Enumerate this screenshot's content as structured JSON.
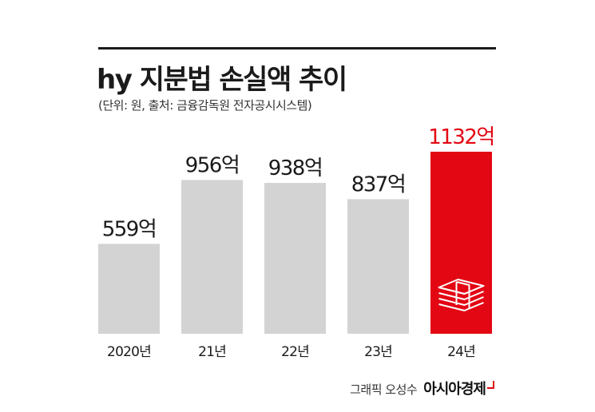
{
  "title": "hy 지분법 손실액 추이",
  "subtitle": "(단위: 원, 출처: 금융감독원 전자공시시스템)",
  "credit": "그래픽 오성수",
  "brand": "아시아경제",
  "colors": {
    "bar": "#d3d3d3",
    "highlight": "#e30613",
    "text": "#1a1a1a"
  },
  "icons": {
    "highlight_bar": "money-stack-icon"
  },
  "chart_data": {
    "type": "bar",
    "categories": [
      "2020년",
      "21년",
      "22년",
      "23년",
      "24년"
    ],
    "values": [
      559,
      956,
      938,
      837,
      1132
    ],
    "value_labels": [
      "559억",
      "956억",
      "938억",
      "837억",
      "1132억"
    ],
    "highlight_index": 4,
    "ylim": [
      0,
      1132
    ]
  }
}
